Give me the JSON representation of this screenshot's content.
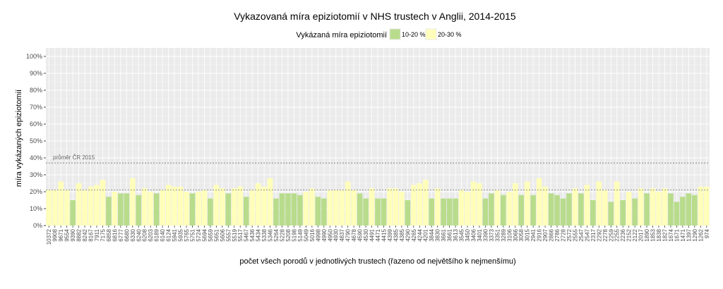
{
  "chart_data": {
    "type": "bar",
    "title": "Vykazovaná míra epiziotomií v NHS trustech v Anglii, 2014-2015",
    "xlabel": "počet všech porodů v jednotlivých trustech (řazeno od největšího k nejmenšímu)",
    "ylabel": "míra vykázaných epiziotomií",
    "ylim": [
      0,
      1.05
    ],
    "yticks": [
      0,
      0.1,
      0.2,
      0.3,
      0.4,
      0.5,
      0.6,
      0.7,
      0.8,
      0.9,
      1.0
    ],
    "ytick_labels": [
      "0%",
      "10%",
      "20%",
      "30%",
      "40%",
      "50%",
      "60%",
      "70%",
      "80%",
      "90%",
      "100%"
    ],
    "legend": {
      "title": "Vykázaná míra epiziotomií",
      "placement": "top",
      "entries": [
        {
          "label": "10-20 %",
          "color": "#b8dc8c"
        },
        {
          "label": "20-30 %",
          "color": "#ffffbb"
        }
      ]
    },
    "grid": true,
    "reference_lines": [
      {
        "value": 0.37,
        "label": "průměr ČR 2015"
      },
      {
        "value": 0.21,
        "label": ""
      }
    ],
    "categories": [
      "10372",
      "9908",
      "9671",
      "9554",
      "9390",
      "8882",
      "8242",
      "8167",
      "7911",
      "7175",
      "6858",
      "6816",
      "6777",
      "6680",
      "6330",
      "6240",
      "6208",
      "6203",
      "6189",
      "6140",
      "6124",
      "5941",
      "5935",
      "5765",
      "5751",
      "5724",
      "5694",
      "5659",
      "5651",
      "5606",
      "5557",
      "5519",
      "5517",
      "5467",
      "5436",
      "5434",
      "5338",
      "5346",
      "5264",
      "5228",
      "5208",
      "5198",
      "5149",
      "5049",
      "5016",
      "4998",
      "4990",
      "4950",
      "4930",
      "4837",
      "4790",
      "4678",
      "4590",
      "4530",
      "4491",
      "4471",
      "4415",
      "4399",
      "4385",
      "4385",
      "4290",
      "4265",
      "4244",
      "4201",
      "3844",
      "3830",
      "3661",
      "3661",
      "3613",
      "3545",
      "3450",
      "3406",
      "3401",
      "3390",
      "3373",
      "3351",
      "3289",
      "3106",
      "3066",
      "3058",
      "3015",
      "2941",
      "2916",
      "2907",
      "2866",
      "2786",
      "2728",
      "2572",
      "2555",
      "2547",
      "2547",
      "2317",
      "2292",
      "2278",
      "2259",
      "2255",
      "2236",
      "2152",
      "2122",
      "2017",
      "1890",
      "1853",
      "1838",
      "1827",
      "1674",
      "1671",
      "1471",
      "1397",
      "1290",
      "1262",
      "974"
    ],
    "values": [
      0.21,
      0.21,
      0.26,
      0.21,
      0.15,
      0.25,
      0.21,
      0.23,
      0.24,
      0.27,
      0.17,
      0.2,
      0.19,
      0.19,
      0.28,
      0.18,
      0.22,
      0.2,
      0.19,
      0.21,
      0.24,
      0.23,
      0.23,
      0.2,
      0.19,
      0.2,
      0.21,
      0.16,
      0.24,
      0.22,
      0.19,
      0.22,
      0.23,
      0.17,
      0.21,
      0.25,
      0.23,
      0.28,
      0.16,
      0.19,
      0.19,
      0.19,
      0.18,
      0.2,
      0.22,
      0.17,
      0.16,
      0.21,
      0.21,
      0.21,
      0.26,
      0.21,
      0.19,
      0.16,
      0.22,
      0.16,
      0.16,
      0.22,
      0.22,
      0.2,
      0.15,
      0.24,
      0.25,
      0.27,
      0.16,
      0.22,
      0.16,
      0.16,
      0.16,
      0.21,
      0.2,
      0.26,
      0.25,
      0.16,
      0.19,
      0.21,
      0.18,
      0.2,
      0.25,
      0.18,
      0.26,
      0.18,
      0.28,
      0.23,
      0.19,
      0.18,
      0.16,
      0.19,
      0.22,
      0.19,
      0.24,
      0.15,
      0.26,
      0.21,
      0.14,
      0.26,
      0.15,
      0.2,
      0.16,
      0.22,
      0.19,
      0.22,
      0.2,
      0.22,
      0.19,
      0.14,
      0.17,
      0.19,
      0.18,
      0.23,
      0.23
    ]
  }
}
